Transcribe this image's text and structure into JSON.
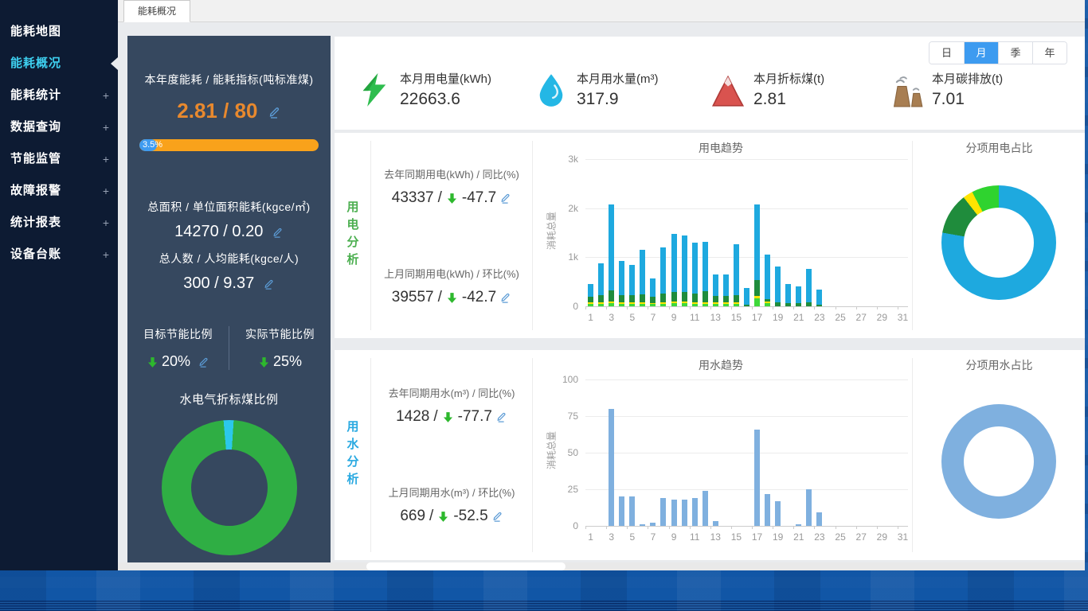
{
  "tab_title": "能耗概况",
  "sep": "/",
  "sidebar": {
    "expand_glyph": "+",
    "items": [
      {
        "label": "能耗地图",
        "expandable": false,
        "active": false
      },
      {
        "label": "能耗概况",
        "expandable": false,
        "active": true
      },
      {
        "label": "能耗统计",
        "expandable": true,
        "active": false
      },
      {
        "label": "数据查询",
        "expandable": true,
        "active": false
      },
      {
        "label": "节能监管",
        "expandable": true,
        "active": false
      },
      {
        "label": "故障报警",
        "expandable": true,
        "active": false
      },
      {
        "label": "统计报表",
        "expandable": true,
        "active": false
      },
      {
        "label": "设备台账",
        "expandable": true,
        "active": false
      }
    ]
  },
  "stats_panel": {
    "annual_label": "本年度能耗 / 能耗指标(吨标准煤)",
    "annual_value": "2.81 / 80",
    "progress_pct": "3.5%",
    "area_label": "总面积 / 单位面积能耗(kgce/㎡)",
    "area_value": "14270 / 0.20",
    "person_label": "总人数 / 人均能耗(kgce/人)",
    "person_value": "300 / 9.37",
    "target_label": "目标节能比例",
    "target_value": "20%",
    "actual_label": "实际节能比例",
    "actual_value": "25%"
  },
  "kpis": [
    {
      "icon": "lightning-icon",
      "label": "本月用电量(kWh)",
      "value": "22663.6"
    },
    {
      "icon": "water-drop-icon",
      "label": "本月用水量(m³)",
      "value": "317.9"
    },
    {
      "icon": "mountain-icon",
      "label": "本月折标煤(t)",
      "value": "2.81"
    },
    {
      "icon": "factory-icon",
      "label": "本月碳排放(t)",
      "value": "7.01"
    }
  ],
  "period_buttons": [
    {
      "label": "日",
      "active": false
    },
    {
      "label": "月",
      "active": true
    },
    {
      "label": "季",
      "active": false
    },
    {
      "label": "年",
      "active": false
    }
  ],
  "electricity": {
    "section_label": "用电分析",
    "rows": [
      {
        "label": "去年同期用电(kWh) / 同比(%)",
        "value": "43337",
        "delta": "-47.7"
      },
      {
        "label": "上月同期用电(kWh) / 环比(%)",
        "value": "39557",
        "delta": "-42.7"
      }
    ]
  },
  "water": {
    "section_label": "用水分析",
    "rows": [
      {
        "label": "去年同期用水(m³) / 同比(%)",
        "value": "1428",
        "delta": "-77.7"
      },
      {
        "label": "上月同期用水(m³) / 环比(%)",
        "value": "669",
        "delta": "-52.5"
      }
    ]
  },
  "colors": {
    "accent_blue": "#3d9bf0",
    "sidebar_bg": "#0d1b33",
    "panel_bg": "#36485f",
    "orange_value": "#e8892e",
    "progress_orange": "#f9a21b",
    "progress_blue": "#3e9bf0",
    "green_arrow": "#2db82d",
    "edit_blue": "#5b9bd5",
    "elec_label_green": "#4caf50",
    "water_label_blue": "#29a9e1"
  },
  "chart_data": [
    {
      "id": "elec_trend",
      "type": "bar",
      "stacked": true,
      "title": "用电趋势",
      "xlabel": "",
      "ylabel": "消耗总量",
      "ylim": [
        0,
        3000
      ],
      "yticks": [
        {
          "v": 0,
          "label": "0"
        },
        {
          "v": 1000,
          "label": "1k"
        },
        {
          "v": 2000,
          "label": "2k"
        },
        {
          "v": 3000,
          "label": "3k"
        }
      ],
      "categories": [
        1,
        2,
        3,
        4,
        5,
        6,
        7,
        8,
        9,
        10,
        11,
        12,
        13,
        14,
        15,
        16,
        17,
        18,
        19,
        20,
        21,
        22,
        23,
        24,
        25,
        26,
        27,
        28,
        29,
        30,
        31
      ],
      "label_interval": 2,
      "grid": true,
      "legend": false,
      "series": [
        {
          "name": "segment-lime",
          "color": "#3fd83a",
          "values": [
            50,
            55,
            60,
            55,
            50,
            55,
            45,
            55,
            60,
            60,
            55,
            55,
            50,
            50,
            45,
            0,
            160,
            60,
            0,
            0,
            0,
            0,
            0,
            0,
            0,
            0,
            0,
            0,
            0,
            0,
            0
          ]
        },
        {
          "name": "segment-yellow",
          "color": "#ffe400",
          "values": [
            30,
            30,
            35,
            30,
            30,
            30,
            25,
            30,
            30,
            30,
            30,
            30,
            25,
            25,
            30,
            0,
            45,
            30,
            0,
            0,
            0,
            0,
            0,
            0,
            0,
            0,
            0,
            0,
            0,
            0,
            0
          ]
        },
        {
          "name": "segment-green",
          "color": "#1f8c3c",
          "values": [
            120,
            150,
            230,
            150,
            140,
            160,
            130,
            170,
            210,
            200,
            170,
            230,
            130,
            130,
            150,
            30,
            330,
            60,
            80,
            60,
            70,
            80,
            40,
            0,
            0,
            0,
            0,
            0,
            0,
            0,
            0
          ]
        },
        {
          "name": "segment-cyan",
          "color": "#1ea9df",
          "values": [
            250,
            645,
            1755,
            695,
            630,
            905,
            370,
            945,
            1180,
            1150,
            1035,
            1005,
            445,
            445,
            1035,
            340,
            1545,
            910,
            730,
            390,
            340,
            680,
            300,
            0,
            0,
            0,
            0,
            0,
            0,
            0,
            0
          ]
        }
      ]
    },
    {
      "id": "elec_pie",
      "type": "pie",
      "title": "分项用电占比",
      "from_deg": 0,
      "hole_color": "#ffffff",
      "legend": false,
      "slices": [
        {
          "name": "cyan",
          "color": "#1ea9df",
          "pct": 77.8
        },
        {
          "name": "dark-green",
          "color": "#1f8c3c",
          "pct": 11.7
        },
        {
          "name": "yellow",
          "color": "#ffe400",
          "pct": 2.8
        },
        {
          "name": "lime",
          "color": "#2fd32f",
          "pct": 7.7
        }
      ]
    },
    {
      "id": "water_trend",
      "type": "bar",
      "stacked": false,
      "title": "用水趋势",
      "xlabel": "",
      "ylabel": "消耗总量",
      "ylim": [
        0,
        100
      ],
      "yticks": [
        {
          "v": 0,
          "label": "0"
        },
        {
          "v": 25,
          "label": "25"
        },
        {
          "v": 50,
          "label": "50"
        },
        {
          "v": 75,
          "label": "75"
        },
        {
          "v": 100,
          "label": "100"
        }
      ],
      "categories": [
        1,
        2,
        3,
        4,
        5,
        6,
        7,
        8,
        9,
        10,
        11,
        12,
        13,
        14,
        15,
        16,
        17,
        18,
        19,
        20,
        21,
        22,
        23,
        24,
        25,
        26,
        27,
        28,
        29,
        30,
        31
      ],
      "label_interval": 2,
      "grid": true,
      "legend": false,
      "series": [
        {
          "name": "water",
          "color": "#7fb0df",
          "values": [
            0,
            0,
            80,
            20,
            20,
            1,
            2,
            19,
            18,
            18,
            19,
            24,
            3,
            0,
            0,
            0,
            66,
            22,
            17,
            0,
            1,
            25,
            9,
            0,
            0,
            0,
            0,
            0,
            0,
            0,
            0
          ]
        }
      ]
    },
    {
      "id": "water_pie",
      "type": "pie",
      "title": "分项用水占比",
      "from_deg": 0,
      "hole_color": "#ffffff",
      "legend": false,
      "slices": [
        {
          "name": "water",
          "color": "#7fb0df",
          "pct": 100
        }
      ]
    },
    {
      "id": "coal_ratio_pie",
      "type": "pie",
      "title": "水电气折标煤比例",
      "from_deg": -5,
      "hole_color": "#36485f",
      "legend": false,
      "slices": [
        {
          "name": "cyan",
          "color": "#2bc8ea",
          "pct": 2.4
        },
        {
          "name": "green",
          "color": "#2fae44",
          "pct": 97.6
        }
      ]
    }
  ]
}
